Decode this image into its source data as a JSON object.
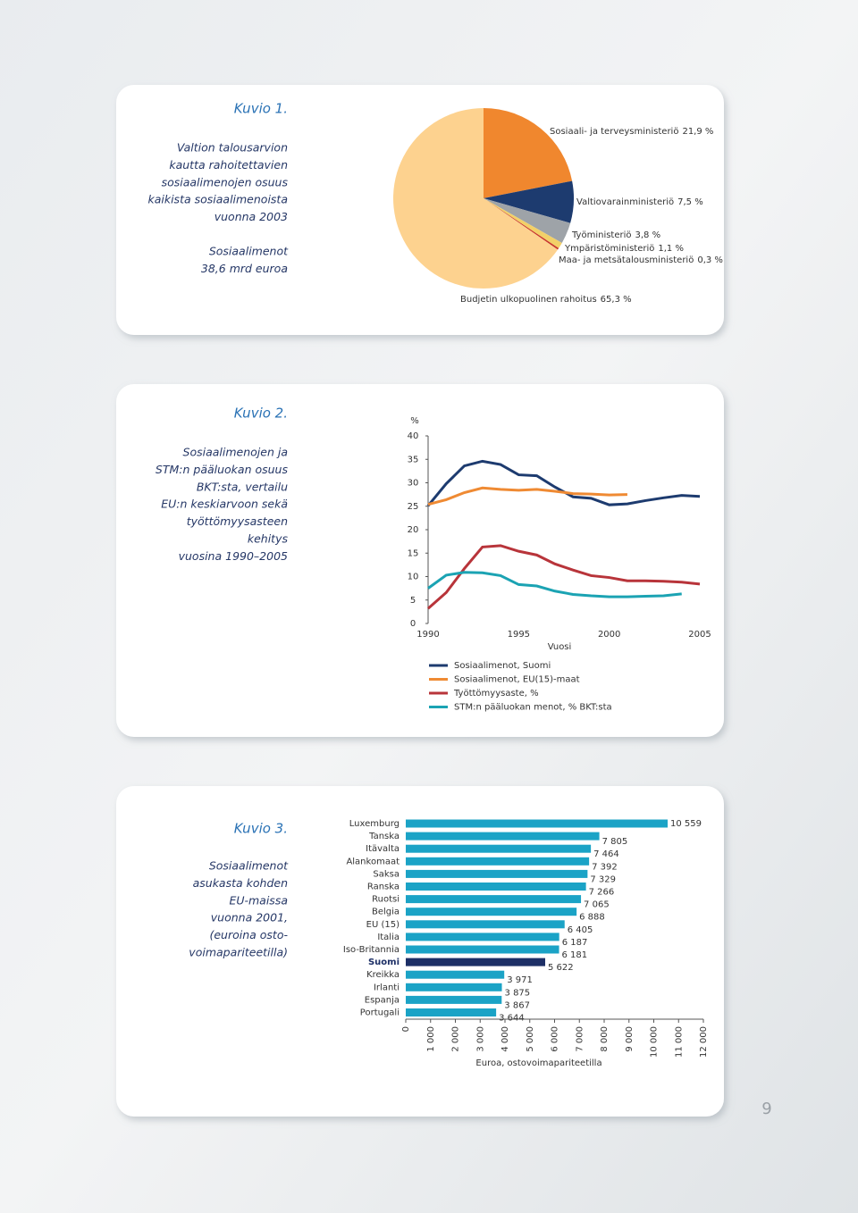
{
  "chart_data": [
    {
      "type": "pie",
      "title": "Kuvio 1.",
      "description": [
        "Valtion talousarvion",
        "kautta rahoitettavien",
        "sosiaalimenojen osuus",
        "kaikista sosiaalimenoista",
        "vuonna 2003"
      ],
      "note": [
        "Sosiaalimenot",
        "38,6 mrd euroa"
      ],
      "categories": [
        "Sosiaali- ja terveysministeriö",
        "Valtiovarainministeriö",
        "Työministeriö",
        "Ympäristöministeriö",
        "Maa- ja metsätalousministeriö",
        "Budjetin ulkopuolinen rahoitus"
      ],
      "values": [
        21.9,
        7.5,
        3.8,
        1.1,
        0.3,
        65.3
      ],
      "value_labels": [
        "21,9 %",
        "7,5 %",
        "3,8 %",
        "1,1 %",
        "0,3 %",
        "65,3 %"
      ],
      "colors": [
        "#f0872e",
        "#1d3b6f",
        "#9ea3a8",
        "#f2d068",
        "#c8352c",
        "#fdd28f"
      ]
    },
    {
      "type": "line",
      "title": "Kuvio 2.",
      "description": [
        "Sosiaalimenojen ja",
        "STM:n pääluokan osuus",
        "BKT:sta, vertailu",
        "EU:n keskiarvoon sekä",
        "työttömyysasteen",
        "kehitys",
        "vuosina 1990–2005"
      ],
      "ylabel": "%",
      "xlabel": "Vuosi",
      "x": [
        1990,
        1991,
        1992,
        1993,
        1994,
        1995,
        1996,
        1997,
        1998,
        1999,
        2000,
        2001,
        2002,
        2003,
        2004,
        2005
      ],
      "series": [
        {
          "name": "Sosiaalimenot, Suomi",
          "color": "#1d3b6f",
          "values": [
            25.1,
            29.8,
            33.6,
            34.6,
            33.9,
            31.7,
            31.5,
            29.1,
            27.0,
            26.7,
            25.3,
            25.5,
            26.2,
            26.8,
            27.3,
            27.1
          ]
        },
        {
          "name": "Sosiaalimenot, EU(15)-maat",
          "color": "#ef8a33",
          "values": [
            25.4,
            26.4,
            27.9,
            28.9,
            28.6,
            28.4,
            28.6,
            28.2,
            27.7,
            27.6,
            27.4,
            27.5,
            null,
            null,
            null,
            null
          ]
        },
        {
          "name": "Työttömyysaste, %",
          "color": "#b8343a",
          "values": [
            3.2,
            6.6,
            11.7,
            16.3,
            16.6,
            15.4,
            14.6,
            12.7,
            11.4,
            10.2,
            9.8,
            9.1,
            9.1,
            9.0,
            8.8,
            8.4
          ]
        },
        {
          "name": "STM:n pääluokan menot, % BKT:sta",
          "color": "#1ba3b3",
          "values": [
            7.5,
            10.3,
            10.9,
            10.8,
            10.2,
            8.3,
            8.0,
            6.9,
            6.2,
            5.9,
            5.7,
            5.7,
            5.8,
            5.9,
            6.3,
            null
          ]
        }
      ],
      "xlim": [
        1990,
        2005
      ],
      "xticks": [
        1990,
        1995,
        2000,
        2005
      ],
      "ylim": [
        0,
        40
      ],
      "yticks": [
        0,
        5,
        10,
        15,
        20,
        25,
        30,
        35,
        40
      ]
    },
    {
      "type": "bar",
      "orientation": "horizontal",
      "title": "Kuvio 3.",
      "description": [
        "Sosiaalimenot",
        "asukasta kohden",
        "EU-maissa",
        "vuonna 2001,",
        "(euroina osto-",
        "voimapariteetilla)"
      ],
      "categories": [
        "Luxemburg",
        "Tanska",
        "Itävalta",
        "Alankomaat",
        "Saksa",
        "Ranska",
        "Ruotsi",
        "Belgia",
        "EU (15)",
        "Italia",
        "Iso-Britannia",
        "Suomi",
        "Kreikka",
        "Irlanti",
        "Espanja",
        "Portugali"
      ],
      "values": [
        10559,
        7805,
        7464,
        7392,
        7329,
        7266,
        7065,
        6888,
        6405,
        6187,
        6181,
        5622,
        3971,
        3875,
        3867,
        3644
      ],
      "value_labels": [
        "10 559",
        "7 805",
        "7 464",
        "7 392",
        "7 329",
        "7 266",
        "7 065",
        "6 888",
        "6 405",
        "6 187",
        "6 181",
        "5 622",
        "3 971",
        "3 875",
        "3 867",
        "3 644"
      ],
      "colors": [
        "#1ba3c6",
        "#1ba3c6",
        "#1ba3c6",
        "#1ba3c6",
        "#1ba3c6",
        "#1ba3c6",
        "#1ba3c6",
        "#1ba3c6",
        "#1ba3c6",
        "#1ba3c6",
        "#1ba3c6",
        "#1d2f66",
        "#1ba3c6",
        "#1ba3c6",
        "#1ba3c6",
        "#1ba3c6"
      ],
      "xlim": [
        0,
        12000
      ],
      "xticks": [
        0,
        {
          "value": 1000,
          "label": "1 000"
        },
        {
          "value": 2000,
          "label": "2 000"
        },
        {
          "value": 3000,
          "label": "3 000"
        },
        {
          "value": 4000,
          "label": "4 000"
        },
        {
          "value": 5000,
          "label": "5 000"
        },
        {
          "value": 6000,
          "label": "6 000"
        },
        {
          "value": 7000,
          "label": "7 000"
        },
        {
          "value": 8000,
          "label": "8 000"
        },
        {
          "value": 9000,
          "label": "9 000"
        },
        {
          "value": 10000,
          "label": "10 000"
        },
        {
          "value": 11000,
          "label": "11 000"
        },
        {
          "value": 12000,
          "label": "12 000"
        }
      ],
      "xlabel": "Euroa, ostovoimapariteetilla"
    }
  ],
  "page_number": "9"
}
